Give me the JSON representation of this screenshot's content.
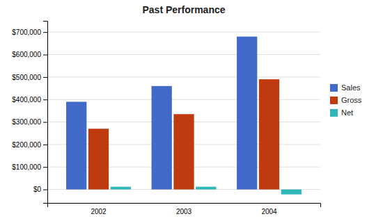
{
  "chart_data": {
    "type": "bar",
    "title": "Past Performance",
    "categories": [
      "2002",
      "2003",
      "2004"
    ],
    "series": [
      {
        "name": "Sales",
        "color": "#4169c8",
        "values": [
          390000,
          460000,
          680000
        ]
      },
      {
        "name": "Gross",
        "color": "#c03a10",
        "values": [
          270000,
          335000,
          490000
        ]
      },
      {
        "name": "Net",
        "color": "#30b8b8",
        "values": [
          12000,
          12000,
          -22000
        ]
      }
    ],
    "ylim": [
      -60000,
      750000
    ],
    "yticks": [
      {
        "value": 0,
        "label": "$0"
      },
      {
        "value": 100000,
        "label": "$100,000"
      },
      {
        "value": 200000,
        "label": "$200,000"
      },
      {
        "value": 300000,
        "label": "$300,000"
      },
      {
        "value": 400000,
        "label": "$400,000"
      },
      {
        "value": 500000,
        "label": "$500,000"
      },
      {
        "value": 600000,
        "label": "$600,000"
      },
      {
        "value": 700000,
        "label": "$700,000"
      }
    ],
    "grid": true,
    "legend": "right"
  }
}
